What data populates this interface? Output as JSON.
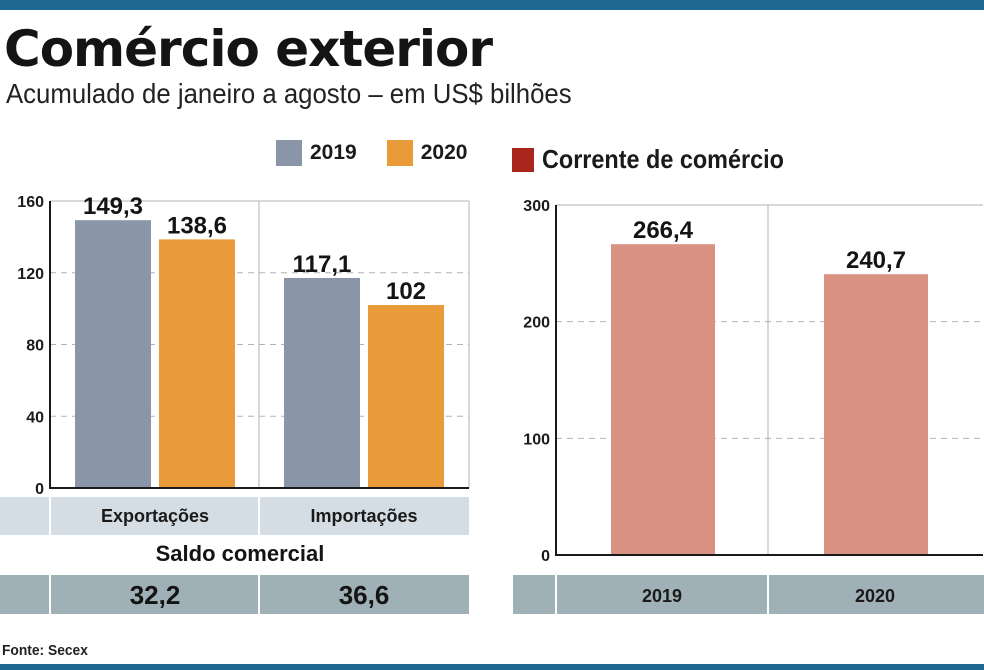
{
  "header": {
    "title": "Comércio exterior",
    "subtitle": "Acumulado de janeiro a agosto – em US$ bilhões"
  },
  "source": "Fonte: Secex",
  "colors": {
    "accent": "#1f6a93",
    "series_2019": "#8a95a8",
    "series_2020": "#e89b38",
    "corrente": "#d99181",
    "corrente_legend": "#a8261c",
    "band_dark": "#9fb0b7",
    "band_light": "#d3dde3"
  },
  "chart_data": [
    {
      "type": "bar",
      "categories": [
        "Exportações",
        "Importações"
      ],
      "series": [
        {
          "name": "2019",
          "values": [
            149.3,
            117.1
          ],
          "labels": [
            "149,3",
            "117,1"
          ]
        },
        {
          "name": "2020",
          "values": [
            138.6,
            102
          ],
          "labels": [
            "138,6",
            "102"
          ]
        }
      ],
      "yticks": [
        "0",
        "40",
        "80",
        "120",
        "160"
      ],
      "ylim": [
        0,
        160
      ],
      "legend": "top-right",
      "grid": true
    },
    {
      "type": "bar",
      "legend_title": "Corrente de comércio",
      "categories": [
        "2019",
        "2020"
      ],
      "values": [
        266.4,
        240.7
      ],
      "labels": [
        "266,4",
        "240,7"
      ],
      "yticks": [
        "0",
        "100",
        "200",
        "300"
      ],
      "ylim": [
        0,
        300
      ],
      "grid": true
    }
  ],
  "saldo": {
    "title": "Saldo comercial",
    "values": [
      "32,2",
      "36,6"
    ]
  }
}
